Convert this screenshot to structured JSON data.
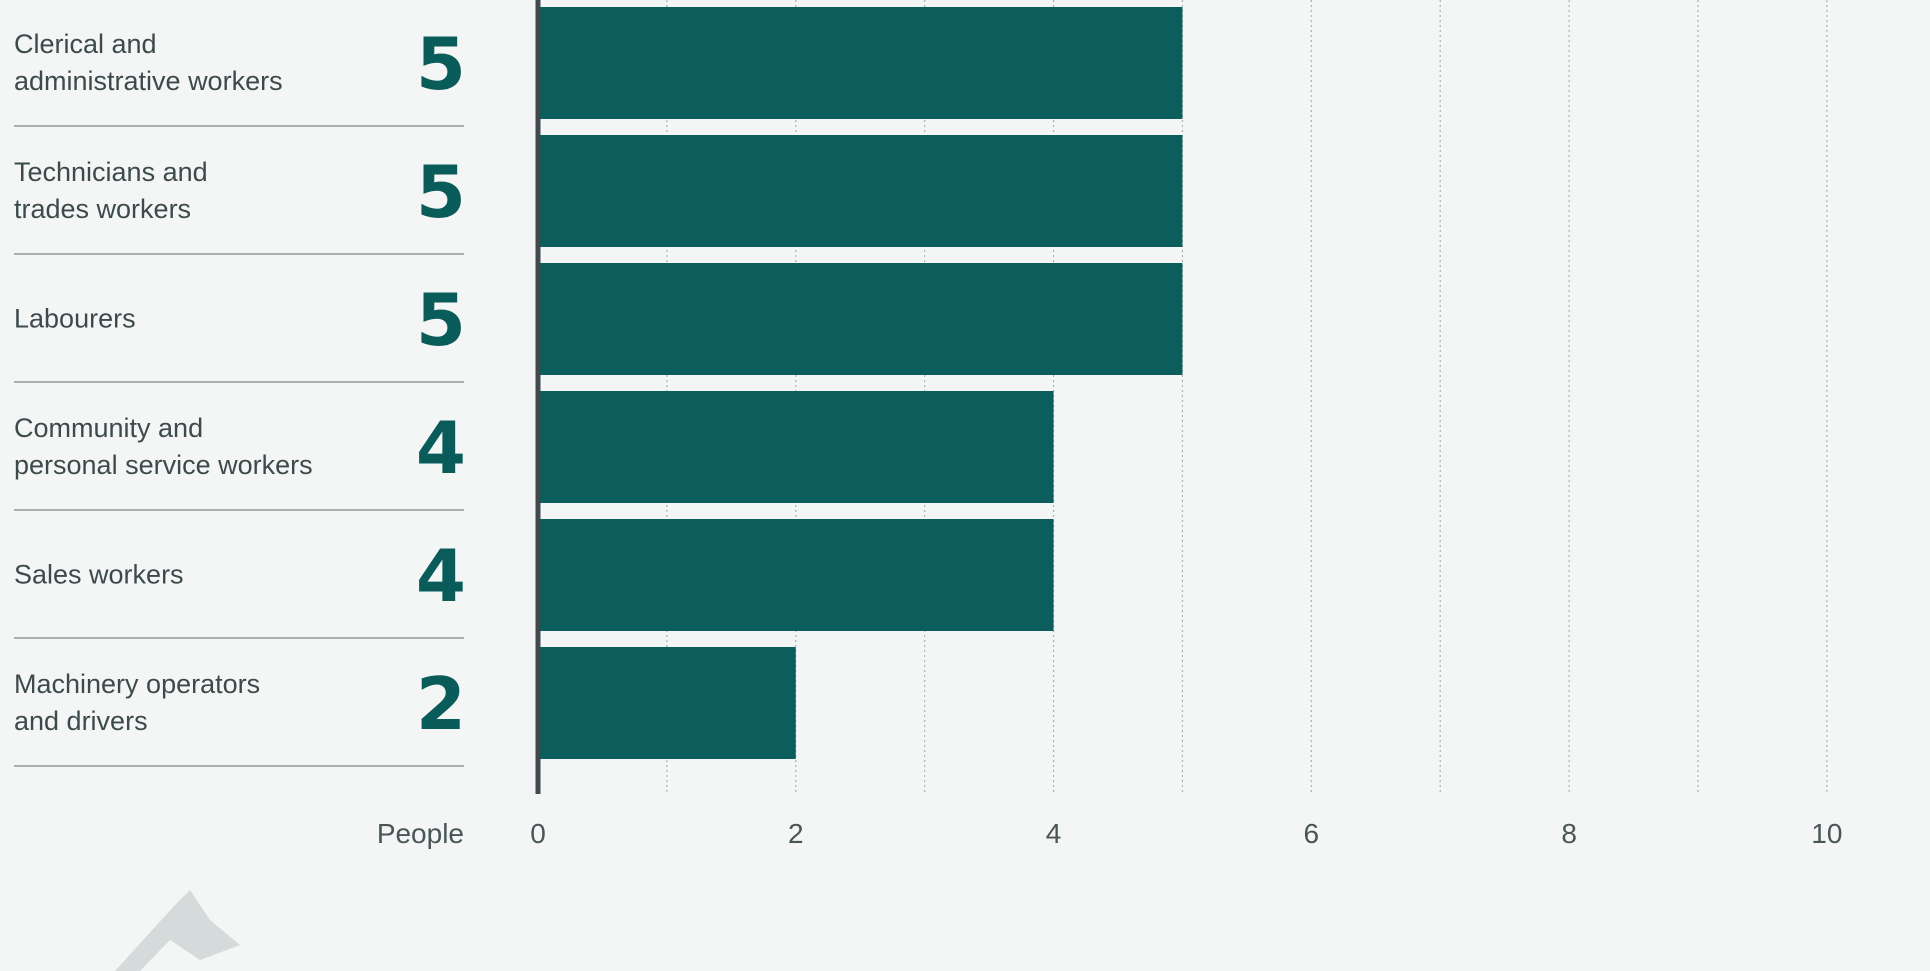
{
  "chart_data": {
    "type": "bar",
    "orientation": "horizontal",
    "categories": [
      "Clerical and\nadministrative workers",
      "Technicians and\ntrades workers",
      "Labourers",
      "Community and\npersonal service workers",
      "Sales workers",
      "Machinery operators\nand drivers"
    ],
    "values": [
      5,
      5,
      5,
      4,
      4,
      2
    ],
    "color": "#0b5e5b",
    "x_label": "People",
    "xlim": [
      0,
      10.8
    ],
    "xticks": [
      0,
      2,
      4,
      6,
      8,
      10
    ],
    "grid_lines": [
      1,
      2,
      3,
      4,
      5,
      6,
      7,
      8,
      9,
      10
    ]
  }
}
